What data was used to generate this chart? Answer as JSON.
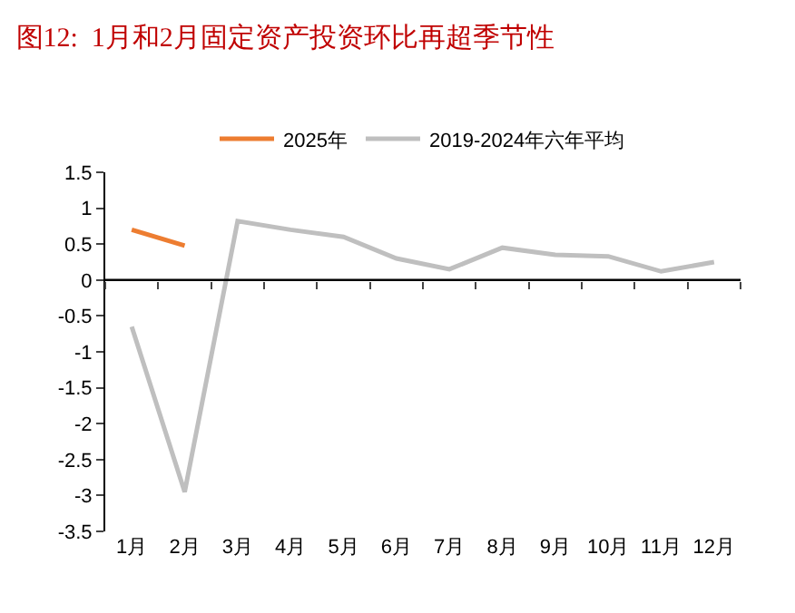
{
  "chart_data": {
    "type": "line",
    "title": "图12:  1月和2月固定资产投资环比再超季节性",
    "categories": [
      "1月",
      "2月",
      "3月",
      "4月",
      "5月",
      "6月",
      "7月",
      "8月",
      "9月",
      "10月",
      "11月",
      "12月"
    ],
    "series": [
      {
        "name": "2025年",
        "color": "#ed7d31",
        "values": [
          0.7,
          0.48,
          null,
          null,
          null,
          null,
          null,
          null,
          null,
          null,
          null,
          null
        ]
      },
      {
        "name": "2019-2024年六年平均",
        "color": "#bfbfbf",
        "values": [
          -0.65,
          -2.95,
          0.82,
          0.7,
          0.6,
          0.3,
          0.15,
          0.45,
          0.35,
          0.33,
          0.12,
          0.25
        ]
      }
    ],
    "ylim": [
      -3.5,
      1.5
    ],
    "yticks": [
      -3.5,
      -3,
      -2.5,
      -2,
      -1.5,
      -1,
      -0.5,
      0,
      0.5,
      1,
      1.5
    ],
    "ref_lines": [
      {
        "axis": "y",
        "value": 0,
        "color": "#000000"
      }
    ],
    "grid": false,
    "legend": "top",
    "marker": "none",
    "line_style": "solid"
  }
}
